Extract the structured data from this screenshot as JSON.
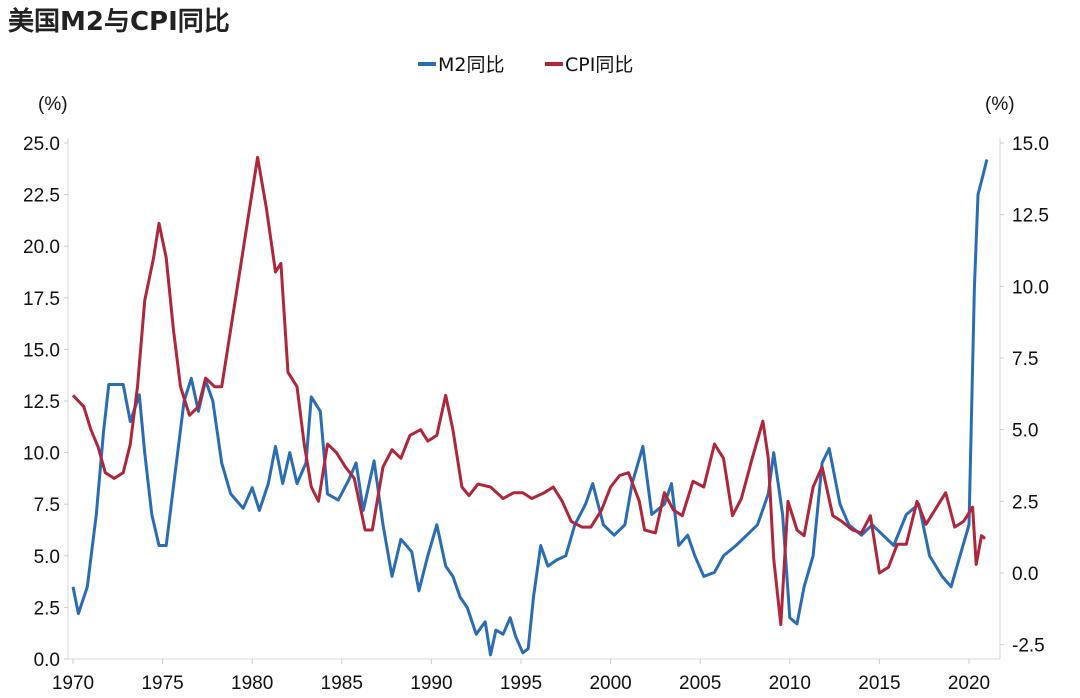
{
  "chart_data": {
    "type": "line",
    "title": "美国M2与CPI同比",
    "left_axis": {
      "unit": "(%)",
      "ylim": [
        0,
        25
      ],
      "ticks": [
        "0.0",
        "2.5",
        "5.0",
        "7.5",
        "10.0",
        "12.5",
        "15.0",
        "17.5",
        "20.0",
        "22.5",
        "25.0"
      ]
    },
    "right_axis": {
      "unit": "(%)",
      "ylim": [
        -3,
        15
      ],
      "ticks": [
        "-2.5",
        "0.0",
        "2.5",
        "5.0",
        "7.5",
        "10.0",
        "12.5",
        "15.0"
      ]
    },
    "x_ticks": [
      "1970",
      "1975",
      "1980",
      "1985",
      "1990",
      "1995",
      "2000",
      "2005",
      "2010",
      "2015",
      "2020"
    ],
    "legend_position": "top-center",
    "grid": false,
    "series": [
      {
        "name": "M2同比",
        "axis": "left",
        "color": "#2a6db5",
        "points": [
          [
            1970.0,
            3.5
          ],
          [
            1970.3,
            2.2
          ],
          [
            1970.8,
            3.5
          ],
          [
            1971.3,
            7
          ],
          [
            1971.7,
            11
          ],
          [
            1972.0,
            13.3
          ],
          [
            1972.8,
            13.3
          ],
          [
            1973.2,
            11.5
          ],
          [
            1973.7,
            12.8
          ],
          [
            1974.0,
            10
          ],
          [
            1974.4,
            7
          ],
          [
            1974.8,
            5.5
          ],
          [
            1975.2,
            5.5
          ],
          [
            1975.7,
            9
          ],
          [
            1976.2,
            12.5
          ],
          [
            1976.6,
            13.6
          ],
          [
            1977.0,
            12
          ],
          [
            1977.4,
            13.5
          ],
          [
            1977.8,
            12.5
          ],
          [
            1978.3,
            9.5
          ],
          [
            1978.8,
            8
          ],
          [
            1979.5,
            7.3
          ],
          [
            1980.0,
            8.3
          ],
          [
            1980.4,
            7.2
          ],
          [
            1980.9,
            8.5
          ],
          [
            1981.3,
            10.3
          ],
          [
            1981.7,
            8.5
          ],
          [
            1982.1,
            10
          ],
          [
            1982.5,
            8.5
          ],
          [
            1983.0,
            9.5
          ],
          [
            1983.3,
            12.7
          ],
          [
            1983.8,
            12
          ],
          [
            1984.2,
            8
          ],
          [
            1984.8,
            7.7
          ],
          [
            1985.4,
            8.7
          ],
          [
            1985.8,
            9.5
          ],
          [
            1986.2,
            7.2
          ],
          [
            1986.8,
            9.6
          ],
          [
            1987.3,
            6.5
          ],
          [
            1987.8,
            4
          ],
          [
            1988.3,
            5.8
          ],
          [
            1988.9,
            5.2
          ],
          [
            1989.3,
            3.3
          ],
          [
            1989.8,
            5
          ],
          [
            1990.3,
            6.5
          ],
          [
            1990.8,
            4.5
          ],
          [
            1991.2,
            4
          ],
          [
            1991.6,
            3
          ],
          [
            1992.0,
            2.5
          ],
          [
            1992.5,
            1.2
          ],
          [
            1993.0,
            1.8
          ],
          [
            1993.3,
            0.2
          ],
          [
            1993.6,
            1.4
          ],
          [
            1994.0,
            1.2
          ],
          [
            1994.4,
            2.0
          ],
          [
            1994.7,
            1.1
          ],
          [
            1995.1,
            0.3
          ],
          [
            1995.4,
            0.5
          ],
          [
            1995.7,
            3
          ],
          [
            1996.1,
            5.5
          ],
          [
            1996.5,
            4.5
          ],
          [
            1997.0,
            4.8
          ],
          [
            1997.5,
            5
          ],
          [
            1998.0,
            6.5
          ],
          [
            1998.6,
            7.5
          ],
          [
            1999.0,
            8.5
          ],
          [
            1999.6,
            6.5
          ],
          [
            2000.2,
            6
          ],
          [
            2000.8,
            6.5
          ],
          [
            2001.2,
            8.5
          ],
          [
            2001.8,
            10.3
          ],
          [
            2002.3,
            7
          ],
          [
            2003.0,
            7.5
          ],
          [
            2003.4,
            8.5
          ],
          [
            2003.8,
            5.5
          ],
          [
            2004.3,
            6
          ],
          [
            2004.7,
            5
          ],
          [
            2005.2,
            4
          ],
          [
            2005.8,
            4.2
          ],
          [
            2006.3,
            5
          ],
          [
            2007.0,
            5.5
          ],
          [
            2007.6,
            6
          ],
          [
            2008.2,
            6.5
          ],
          [
            2008.8,
            8
          ],
          [
            2009.1,
            10
          ],
          [
            2009.6,
            7
          ],
          [
            2010.0,
            2
          ],
          [
            2010.4,
            1.7
          ],
          [
            2010.8,
            3.5
          ],
          [
            2011.3,
            5
          ],
          [
            2011.8,
            9.5
          ],
          [
            2012.2,
            10.2
          ],
          [
            2012.8,
            7.5
          ],
          [
            2013.3,
            6.5
          ],
          [
            2014.0,
            6
          ],
          [
            2014.6,
            6.5
          ],
          [
            2015.2,
            6
          ],
          [
            2015.8,
            5.5
          ],
          [
            2016.5,
            7
          ],
          [
            2017.2,
            7.5
          ],
          [
            2017.8,
            5
          ],
          [
            2018.5,
            4
          ],
          [
            2019.0,
            3.5
          ],
          [
            2019.5,
            5
          ],
          [
            2020.0,
            6.5
          ],
          [
            2020.3,
            18
          ],
          [
            2020.5,
            22.5
          ],
          [
            2020.8,
            23.5
          ],
          [
            2021.0,
            24.2
          ]
        ]
      },
      {
        "name": "CPI同比",
        "axis": "right",
        "color": "#b0263a",
        "points": [
          [
            1970.0,
            6.2
          ],
          [
            1970.6,
            5.8
          ],
          [
            1971.0,
            5
          ],
          [
            1971.4,
            4.4
          ],
          [
            1971.8,
            3.5
          ],
          [
            1972.3,
            3.3
          ],
          [
            1972.8,
            3.5
          ],
          [
            1973.2,
            4.5
          ],
          [
            1973.6,
            6.5
          ],
          [
            1974.0,
            9.5
          ],
          [
            1974.5,
            11
          ],
          [
            1974.8,
            12.2
          ],
          [
            1975.2,
            11
          ],
          [
            1975.6,
            8.5
          ],
          [
            1976.0,
            6.5
          ],
          [
            1976.5,
            5.5
          ],
          [
            1977.0,
            5.8
          ],
          [
            1977.4,
            6.8
          ],
          [
            1977.9,
            6.5
          ],
          [
            1978.3,
            6.5
          ],
          [
            1978.8,
            8.5
          ],
          [
            1979.3,
            10.5
          ],
          [
            1979.8,
            12.5
          ],
          [
            1980.3,
            14.5
          ],
          [
            1980.8,
            12.7
          ],
          [
            1981.3,
            10.5
          ],
          [
            1981.6,
            10.8
          ],
          [
            1982.0,
            7
          ],
          [
            1982.5,
            6.5
          ],
          [
            1982.9,
            4.5
          ],
          [
            1983.3,
            3
          ],
          [
            1983.7,
            2.5
          ],
          [
            1984.2,
            4.5
          ],
          [
            1984.7,
            4.2
          ],
          [
            1985.2,
            3.7
          ],
          [
            1985.7,
            3.3
          ],
          [
            1986.3,
            1.5
          ],
          [
            1986.7,
            1.5
          ],
          [
            1987.3,
            3.7
          ],
          [
            1987.8,
            4.3
          ],
          [
            1988.3,
            4
          ],
          [
            1988.8,
            4.8
          ],
          [
            1989.4,
            5
          ],
          [
            1989.8,
            4.6
          ],
          [
            1990.3,
            4.8
          ],
          [
            1990.8,
            6.2
          ],
          [
            1991.2,
            5
          ],
          [
            1991.7,
            3
          ],
          [
            1992.1,
            2.7
          ],
          [
            1992.6,
            3.1
          ],
          [
            1993.3,
            3
          ],
          [
            1994.0,
            2.6
          ],
          [
            1994.6,
            2.8
          ],
          [
            1995.1,
            2.8
          ],
          [
            1995.6,
            2.6
          ],
          [
            1996.3,
            2.8
          ],
          [
            1996.8,
            3
          ],
          [
            1997.3,
            2.5
          ],
          [
            1997.8,
            1.8
          ],
          [
            1998.4,
            1.6
          ],
          [
            1998.9,
            1.6
          ],
          [
            1999.5,
            2.2
          ],
          [
            2000.0,
            3
          ],
          [
            2000.5,
            3.4
          ],
          [
            2001.0,
            3.5
          ],
          [
            2001.6,
            2.5
          ],
          [
            2001.9,
            1.5
          ],
          [
            2002.5,
            1.4
          ],
          [
            2003.0,
            2.8
          ],
          [
            2003.5,
            2.2
          ],
          [
            2004.0,
            2
          ],
          [
            2004.6,
            3.2
          ],
          [
            2005.2,
            3
          ],
          [
            2005.8,
            4.5
          ],
          [
            2006.3,
            4
          ],
          [
            2006.8,
            2
          ],
          [
            2007.3,
            2.6
          ],
          [
            2007.9,
            4
          ],
          [
            2008.5,
            5.3
          ],
          [
            2008.8,
            4
          ],
          [
            2009.1,
            0.5
          ],
          [
            2009.5,
            -1.8
          ],
          [
            2009.9,
            2.5
          ],
          [
            2010.4,
            1.5
          ],
          [
            2010.8,
            1.3
          ],
          [
            2011.3,
            3
          ],
          [
            2011.8,
            3.7
          ],
          [
            2012.4,
            2
          ],
          [
            2012.9,
            1.8
          ],
          [
            2013.5,
            1.5
          ],
          [
            2014.0,
            1.4
          ],
          [
            2014.5,
            2
          ],
          [
            2015.0,
            0
          ],
          [
            2015.5,
            0.2
          ],
          [
            2016.0,
            1
          ],
          [
            2016.5,
            1
          ],
          [
            2017.1,
            2.5
          ],
          [
            2017.6,
            1.7
          ],
          [
            2018.2,
            2.3
          ],
          [
            2018.7,
            2.8
          ],
          [
            2019.2,
            1.6
          ],
          [
            2019.7,
            1.8
          ],
          [
            2020.2,
            2.3
          ],
          [
            2020.4,
            0.3
          ],
          [
            2020.7,
            1.3
          ],
          [
            2020.9,
            1.2
          ]
        ]
      }
    ]
  }
}
